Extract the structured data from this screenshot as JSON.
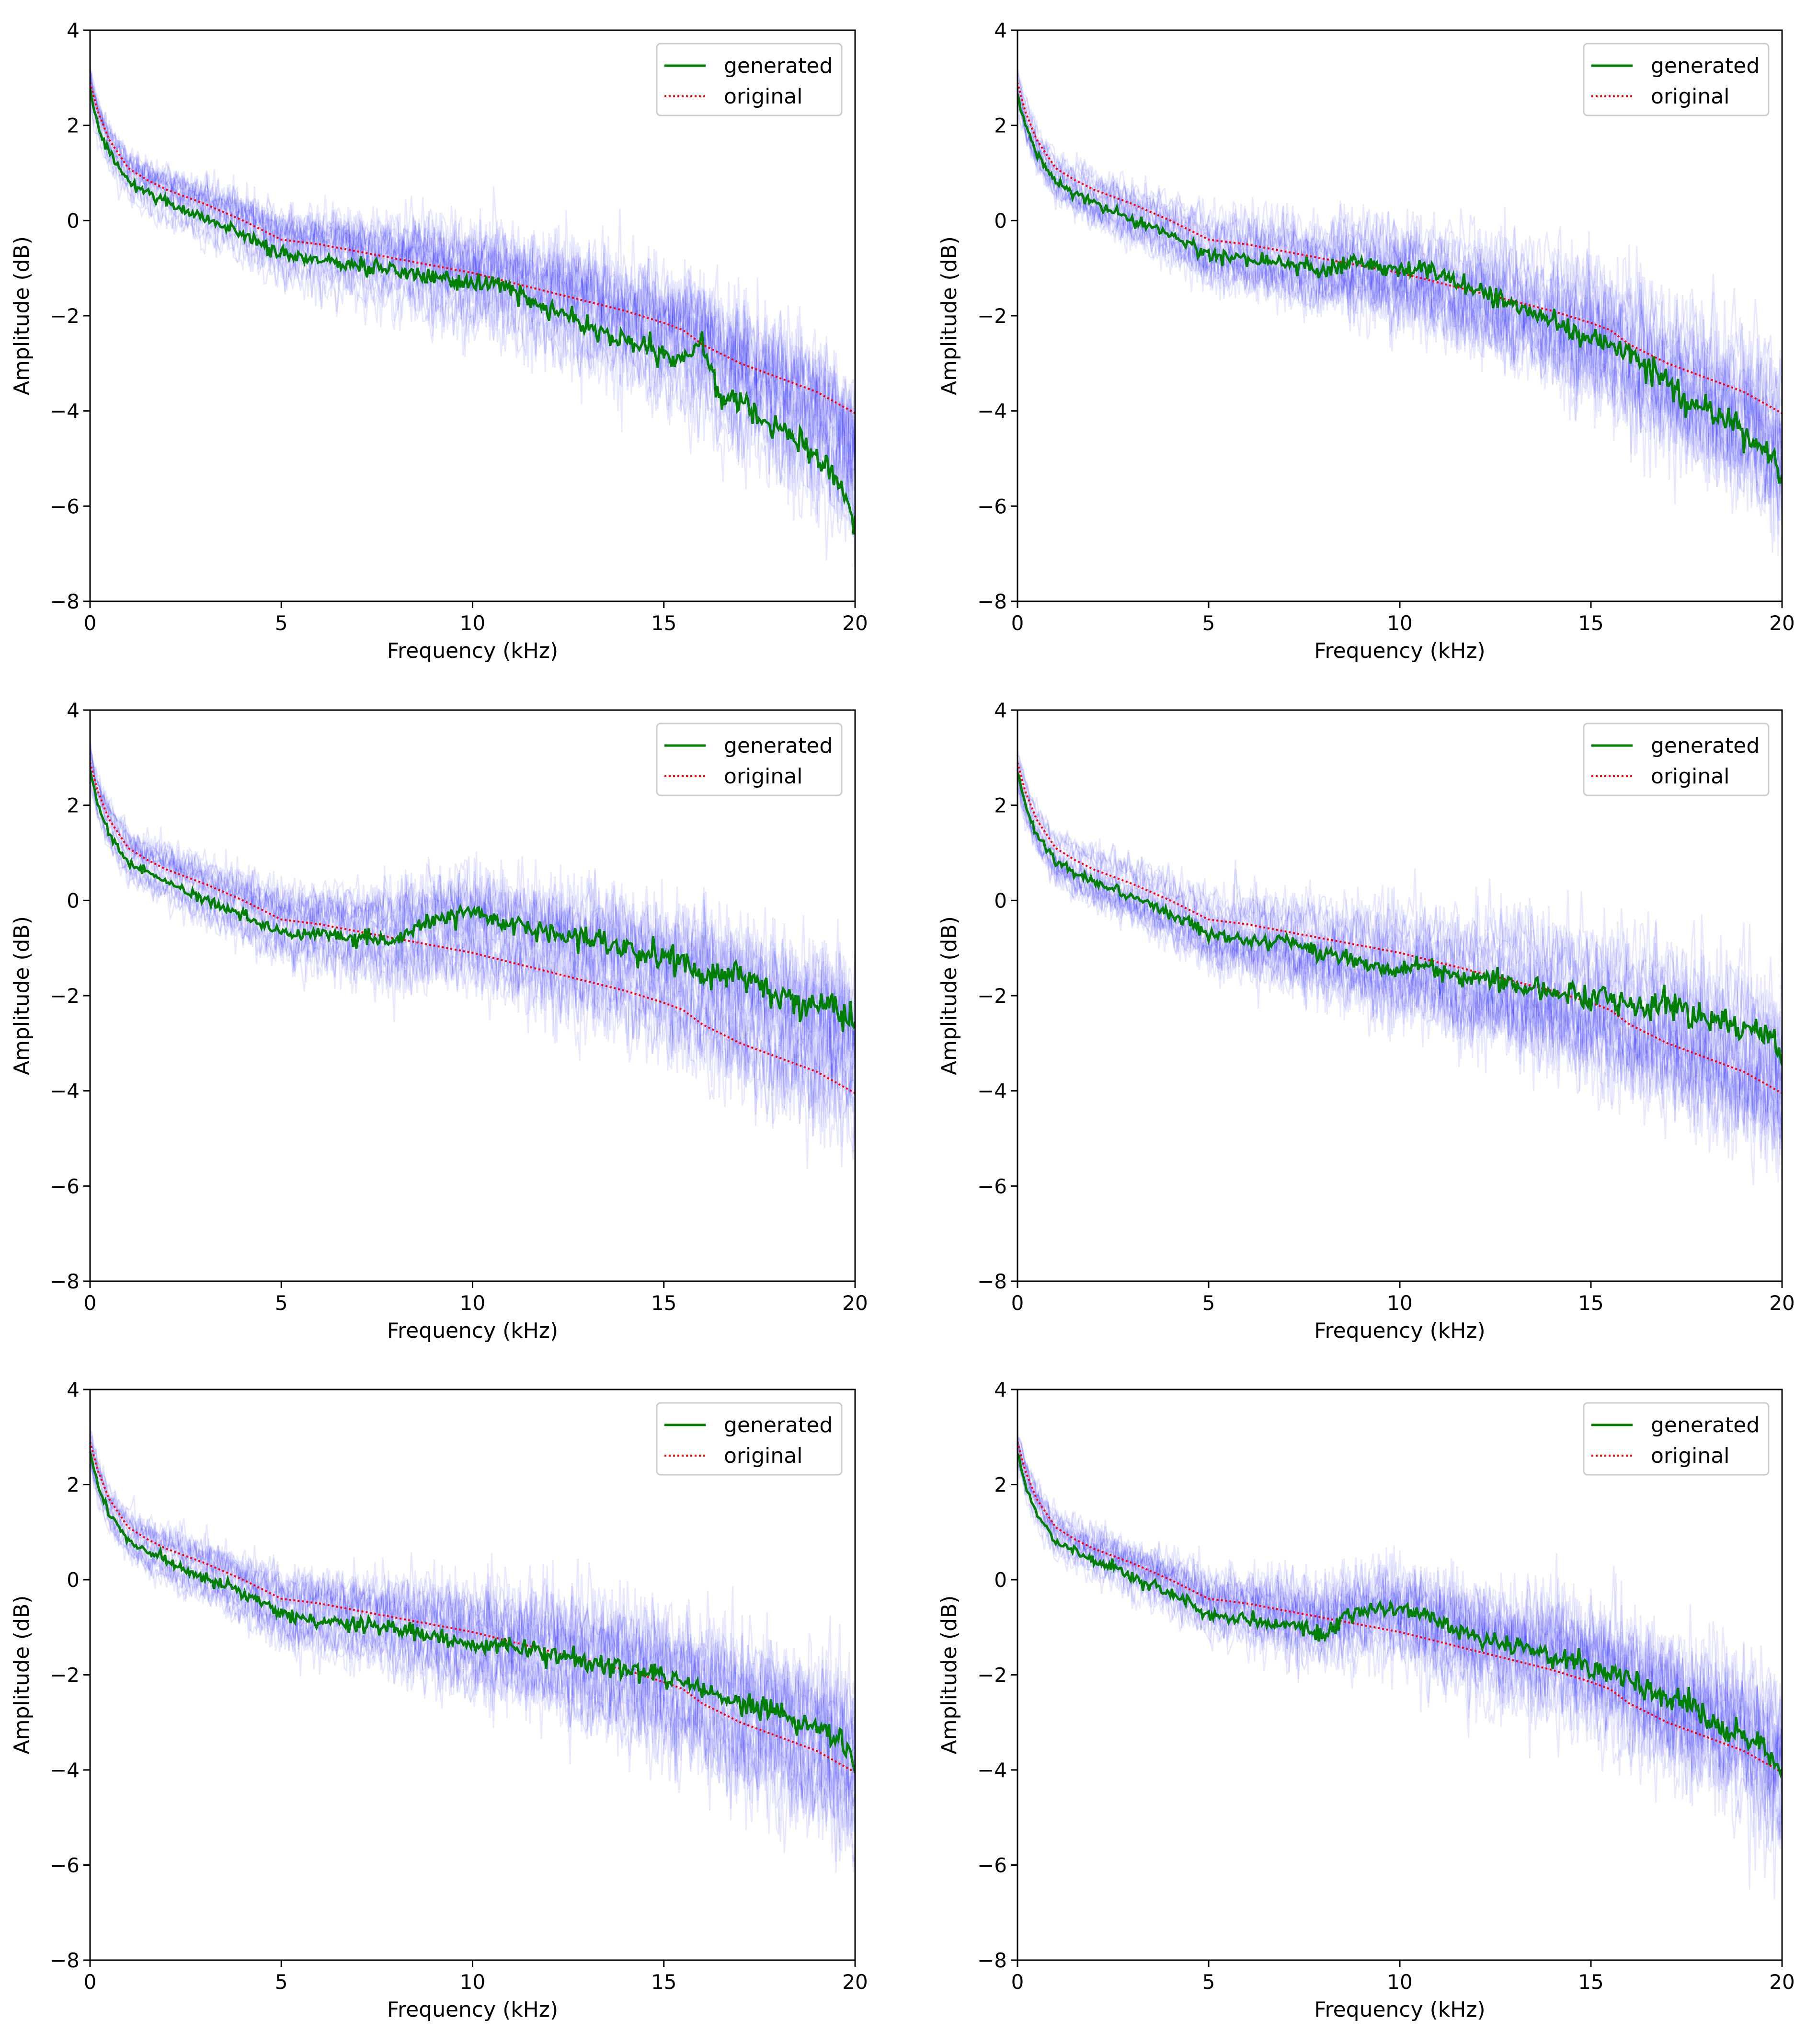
{
  "chart_data": [
    {
      "type": "line",
      "panel": "top-left",
      "xlabel": "Frequency (kHz)",
      "ylabel": "Amplitude (dB)",
      "xlim": [
        0,
        20
      ],
      "ylim": [
        -8,
        4
      ],
      "xticks": [
        0,
        5,
        10,
        15,
        20
      ],
      "yticks": [
        -8,
        -6,
        -4,
        -2,
        0,
        2,
        4
      ],
      "legend_position": "top-right",
      "series": [
        {
          "name": "generated",
          "color": "#008000",
          "style": "solid",
          "x": [
            0,
            0.2,
            0.5,
            1,
            1.5,
            2,
            2.5,
            3,
            3.5,
            4,
            4.5,
            5,
            5.5,
            6,
            6.5,
            7,
            7.5,
            8,
            8.5,
            9,
            9.5,
            10,
            10.5,
            11,
            11.5,
            12,
            12.5,
            13,
            13.5,
            14,
            14.5,
            15,
            15.5,
            16,
            16.5,
            17,
            17.5,
            18,
            18.5,
            19,
            19.5,
            20
          ],
          "y": [
            2.8,
            2.0,
            1.4,
            0.8,
            0.6,
            0.4,
            0.2,
            0.05,
            -0.1,
            -0.3,
            -0.5,
            -0.7,
            -0.8,
            -0.8,
            -0.9,
            -0.95,
            -1.0,
            -1.05,
            -1.1,
            -1.2,
            -1.3,
            -1.35,
            -1.35,
            -1.4,
            -1.7,
            -1.9,
            -2.0,
            -2.2,
            -2.4,
            -2.5,
            -2.7,
            -2.9,
            -3.0,
            -2.5,
            -3.8,
            -3.7,
            -4.1,
            -4.3,
            -4.6,
            -5.0,
            -5.4,
            -6.4
          ]
        },
        {
          "name": "original",
          "color": "#ff0000",
          "style": "dotted",
          "x": [
            0,
            0.2,
            0.5,
            1,
            1.5,
            2,
            3,
            4,
            5,
            6,
            7,
            8,
            9,
            10,
            11,
            12,
            13,
            14,
            15,
            15.5,
            16,
            17,
            18,
            19,
            20
          ],
          "y": [
            2.9,
            2.3,
            1.7,
            1.1,
            0.85,
            0.65,
            0.35,
            0.0,
            -0.4,
            -0.5,
            -0.65,
            -0.8,
            -0.95,
            -1.1,
            -1.3,
            -1.5,
            -1.7,
            -1.9,
            -2.15,
            -2.3,
            -2.6,
            -3.0,
            -3.3,
            -3.6,
            -4.05
          ]
        }
      ]
    },
    {
      "type": "line",
      "panel": "top-right",
      "xlabel": "Frequency (kHz)",
      "ylabel": "Amplitude (dB)",
      "xlim": [
        0,
        20
      ],
      "ylim": [
        -8,
        4
      ],
      "xticks": [
        0,
        5,
        10,
        15,
        20
      ],
      "yticks": [
        -8,
        -6,
        -4,
        -2,
        0,
        2,
        4
      ],
      "legend_position": "top-right",
      "series": [
        {
          "name": "generated",
          "color": "#008000",
          "style": "solid",
          "x": [
            0,
            0.2,
            0.5,
            1,
            1.5,
            2,
            2.5,
            3,
            3.5,
            4,
            4.5,
            5,
            5.5,
            6,
            6.5,
            7,
            7.5,
            8,
            8.5,
            9,
            9.5,
            10,
            10.5,
            11,
            11.5,
            12,
            12.5,
            13,
            13.5,
            14,
            14.5,
            15,
            15.5,
            16,
            16.5,
            17,
            17.5,
            18,
            18.5,
            19,
            19.5,
            20
          ],
          "y": [
            2.7,
            2.0,
            1.4,
            0.8,
            0.55,
            0.35,
            0.2,
            0.0,
            -0.15,
            -0.3,
            -0.5,
            -0.7,
            -0.75,
            -0.8,
            -0.85,
            -0.9,
            -0.95,
            -1.0,
            -0.9,
            -0.85,
            -1.0,
            -1.05,
            -1.0,
            -1.15,
            -1.35,
            -1.5,
            -1.6,
            -1.75,
            -1.9,
            -2.1,
            -2.3,
            -2.4,
            -2.6,
            -2.8,
            -3.1,
            -3.4,
            -3.7,
            -3.9,
            -4.2,
            -4.5,
            -4.8,
            -5.3
          ]
        },
        {
          "name": "original",
          "color": "#ff0000",
          "style": "dotted",
          "x": [
            0,
            0.2,
            0.5,
            1,
            1.5,
            2,
            3,
            4,
            5,
            6,
            7,
            8,
            9,
            10,
            11,
            12,
            13,
            14,
            15,
            15.5,
            16,
            17,
            18,
            19,
            20
          ],
          "y": [
            2.9,
            2.3,
            1.7,
            1.1,
            0.85,
            0.65,
            0.35,
            0.0,
            -0.4,
            -0.5,
            -0.65,
            -0.8,
            -0.95,
            -1.1,
            -1.3,
            -1.5,
            -1.7,
            -1.9,
            -2.15,
            -2.3,
            -2.6,
            -3.0,
            -3.3,
            -3.6,
            -4.05
          ]
        }
      ]
    },
    {
      "type": "line",
      "panel": "middle-left",
      "xlabel": "Frequency (kHz)",
      "ylabel": "Amplitude (dB)",
      "xlim": [
        0,
        20
      ],
      "ylim": [
        -8,
        4
      ],
      "xticks": [
        0,
        5,
        10,
        15,
        20
      ],
      "yticks": [
        -8,
        -6,
        -4,
        -2,
        0,
        2,
        4
      ],
      "legend_position": "top-right",
      "series": [
        {
          "name": "generated",
          "color": "#008000",
          "style": "solid",
          "x": [
            0,
            0.2,
            0.5,
            1,
            1.5,
            2,
            2.5,
            3,
            3.5,
            4,
            4.5,
            5,
            5.5,
            6,
            6.5,
            7,
            7.5,
            8,
            8.5,
            9,
            9.5,
            10,
            10.5,
            11,
            11.5,
            12,
            12.5,
            13,
            13.5,
            14,
            14.5,
            15,
            15.5,
            16,
            16.5,
            17,
            17.5,
            18,
            18.5,
            19,
            19.5,
            20
          ],
          "y": [
            2.8,
            2.0,
            1.4,
            0.8,
            0.6,
            0.4,
            0.2,
            0.0,
            -0.15,
            -0.3,
            -0.5,
            -0.65,
            -0.75,
            -0.7,
            -0.75,
            -0.8,
            -0.8,
            -0.85,
            -0.6,
            -0.4,
            -0.3,
            -0.2,
            -0.35,
            -0.5,
            -0.6,
            -0.7,
            -0.75,
            -0.8,
            -0.9,
            -1.0,
            -1.1,
            -1.2,
            -1.3,
            -1.5,
            -1.6,
            -1.6,
            -1.8,
            -2.0,
            -2.1,
            -2.2,
            -2.3,
            -2.6
          ]
        },
        {
          "name": "original",
          "color": "#ff0000",
          "style": "dotted",
          "x": [
            0,
            0.2,
            0.5,
            1,
            1.5,
            2,
            3,
            4,
            5,
            6,
            7,
            8,
            9,
            10,
            11,
            12,
            13,
            14,
            15,
            15.5,
            16,
            17,
            18,
            19,
            20
          ],
          "y": [
            2.9,
            2.3,
            1.7,
            1.1,
            0.85,
            0.65,
            0.35,
            0.0,
            -0.4,
            -0.5,
            -0.65,
            -0.8,
            -0.95,
            -1.1,
            -1.3,
            -1.5,
            -1.7,
            -1.9,
            -2.15,
            -2.3,
            -2.6,
            -3.0,
            -3.3,
            -3.6,
            -4.05
          ]
        }
      ]
    },
    {
      "type": "line",
      "panel": "middle-right",
      "xlabel": "Frequency (kHz)",
      "ylabel": "Amplitude (dB)",
      "xlim": [
        0,
        20
      ],
      "ylim": [
        -8,
        4
      ],
      "xticks": [
        0,
        5,
        10,
        15,
        20
      ],
      "yticks": [
        -8,
        -6,
        -4,
        -2,
        0,
        2,
        4
      ],
      "legend_position": "top-right",
      "series": [
        {
          "name": "generated",
          "color": "#008000",
          "style": "solid",
          "x": [
            0,
            0.2,
            0.5,
            1,
            1.5,
            2,
            2.5,
            3,
            3.5,
            4,
            4.5,
            5,
            5.5,
            6,
            6.5,
            7,
            7.5,
            8,
            8.5,
            9,
            9.5,
            10,
            10.5,
            11,
            11.5,
            12,
            12.5,
            13,
            13.5,
            14,
            14.5,
            15,
            15.5,
            16,
            16.5,
            17,
            17.5,
            18,
            18.5,
            19,
            19.5,
            20
          ],
          "y": [
            2.7,
            2.0,
            1.4,
            0.8,
            0.6,
            0.4,
            0.25,
            0.05,
            -0.1,
            -0.3,
            -0.45,
            -0.7,
            -0.8,
            -0.8,
            -0.85,
            -0.9,
            -1.0,
            -1.1,
            -1.2,
            -1.3,
            -1.4,
            -1.5,
            -1.3,
            -1.5,
            -1.6,
            -1.7,
            -1.65,
            -1.8,
            -1.85,
            -1.9,
            -2.0,
            -2.1,
            -2.1,
            -2.2,
            -2.3,
            -2.1,
            -2.4,
            -2.5,
            -2.6,
            -2.7,
            -2.8,
            -3.3
          ]
        },
        {
          "name": "original",
          "color": "#ff0000",
          "style": "dotted",
          "x": [
            0,
            0.2,
            0.5,
            1,
            1.5,
            2,
            3,
            4,
            5,
            6,
            7,
            8,
            9,
            10,
            11,
            12,
            13,
            14,
            15,
            15.5,
            16,
            17,
            18,
            19,
            20
          ],
          "y": [
            2.9,
            2.3,
            1.7,
            1.1,
            0.85,
            0.65,
            0.35,
            0.0,
            -0.4,
            -0.5,
            -0.65,
            -0.8,
            -0.95,
            -1.1,
            -1.3,
            -1.5,
            -1.7,
            -1.9,
            -2.15,
            -2.3,
            -2.6,
            -3.0,
            -3.3,
            -3.6,
            -4.05
          ]
        }
      ]
    },
    {
      "type": "line",
      "panel": "bottom-left",
      "xlabel": "Frequency (kHz)",
      "ylabel": "Amplitude (dB)",
      "xlim": [
        0,
        20
      ],
      "ylim": [
        -8,
        4
      ],
      "xticks": [
        0,
        5,
        10,
        15,
        20
      ],
      "yticks": [
        -8,
        -6,
        -4,
        -2,
        0,
        2,
        4
      ],
      "legend_position": "top-right",
      "series": [
        {
          "name": "generated",
          "color": "#008000",
          "style": "solid",
          "x": [
            0,
            0.2,
            0.5,
            1,
            1.5,
            2,
            2.5,
            3,
            3.5,
            4,
            4.5,
            5,
            5.5,
            6,
            6.5,
            7,
            7.5,
            8,
            8.5,
            9,
            9.5,
            10,
            10.5,
            11,
            11.5,
            12,
            12.5,
            13,
            13.5,
            14,
            14.5,
            15,
            15.5,
            16,
            16.5,
            17,
            17.5,
            18,
            18.5,
            19,
            19.5,
            20
          ],
          "y": [
            2.7,
            2.0,
            1.4,
            0.8,
            0.6,
            0.4,
            0.2,
            0.05,
            -0.1,
            -0.3,
            -0.5,
            -0.7,
            -0.85,
            -0.85,
            -0.9,
            -0.95,
            -1.0,
            -1.05,
            -1.1,
            -1.2,
            -1.3,
            -1.4,
            -1.35,
            -1.4,
            -1.5,
            -1.55,
            -1.6,
            -1.7,
            -1.8,
            -1.9,
            -2.0,
            -2.1,
            -2.2,
            -2.3,
            -2.4,
            -2.6,
            -2.7,
            -2.8,
            -3.0,
            -3.1,
            -3.3,
            -3.8
          ]
        },
        {
          "name": "original",
          "color": "#ff0000",
          "style": "dotted",
          "x": [
            0,
            0.2,
            0.5,
            1,
            1.5,
            2,
            3,
            4,
            5,
            6,
            7,
            8,
            9,
            10,
            11,
            12,
            13,
            14,
            15,
            15.5,
            16,
            17,
            18,
            19,
            20
          ],
          "y": [
            2.9,
            2.3,
            1.7,
            1.1,
            0.85,
            0.65,
            0.35,
            0.0,
            -0.4,
            -0.5,
            -0.65,
            -0.8,
            -0.95,
            -1.1,
            -1.3,
            -1.5,
            -1.7,
            -1.9,
            -2.15,
            -2.3,
            -2.6,
            -3.0,
            -3.3,
            -3.6,
            -4.05
          ]
        }
      ]
    },
    {
      "type": "line",
      "panel": "bottom-right",
      "xlabel": "Frequency (kHz)",
      "ylabel": "Amplitude (dB)",
      "xlim": [
        0,
        20
      ],
      "ylim": [
        -8,
        4
      ],
      "xticks": [
        0,
        5,
        10,
        15,
        20
      ],
      "yticks": [
        -8,
        -6,
        -4,
        -2,
        0,
        2,
        4
      ],
      "legend_position": "top-right",
      "series": [
        {
          "name": "generated",
          "color": "#008000",
          "style": "solid",
          "x": [
            0,
            0.2,
            0.5,
            1,
            1.5,
            2,
            2.5,
            3,
            3.5,
            4,
            4.5,
            5,
            5.5,
            6,
            6.5,
            7,
            7.5,
            8,
            8.5,
            9,
            9.5,
            10,
            10.5,
            11,
            11.5,
            12,
            12.5,
            13,
            13.5,
            14,
            14.5,
            15,
            15.5,
            16,
            16.5,
            17,
            17.5,
            18,
            18.5,
            19,
            19.5,
            20
          ],
          "y": [
            2.7,
            2.0,
            1.4,
            0.8,
            0.6,
            0.4,
            0.25,
            0.05,
            -0.1,
            -0.3,
            -0.5,
            -0.7,
            -0.8,
            -0.85,
            -0.9,
            -0.95,
            -1.0,
            -1.2,
            -0.8,
            -0.7,
            -0.6,
            -0.55,
            -0.7,
            -0.9,
            -1.1,
            -1.2,
            -1.3,
            -1.4,
            -1.5,
            -1.6,
            -1.7,
            -1.8,
            -1.9,
            -2.1,
            -2.3,
            -2.5,
            -2.7,
            -2.9,
            -3.1,
            -3.3,
            -3.5,
            -4.1
          ]
        },
        {
          "name": "original",
          "color": "#ff0000",
          "style": "dotted",
          "x": [
            0,
            0.2,
            0.5,
            1,
            1.5,
            2,
            3,
            4,
            5,
            6,
            7,
            8,
            9,
            10,
            11,
            12,
            13,
            14,
            15,
            15.5,
            16,
            17,
            18,
            19,
            20
          ],
          "y": [
            2.9,
            2.3,
            1.7,
            1.1,
            0.85,
            0.65,
            0.35,
            0.0,
            -0.4,
            -0.5,
            -0.65,
            -0.8,
            -0.95,
            -1.1,
            -1.3,
            -1.5,
            -1.7,
            -1.9,
            -2.15,
            -2.3,
            -2.6,
            -3.0,
            -3.3,
            -3.6,
            -4.05
          ]
        }
      ]
    }
  ],
  "background_series": {
    "name": "samples",
    "color": "#0000ff"
  }
}
